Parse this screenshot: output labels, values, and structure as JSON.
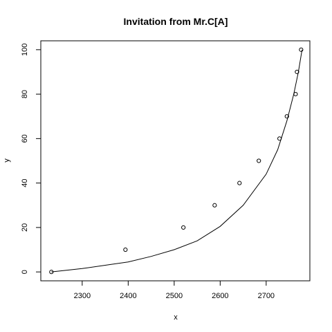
{
  "chart_data": {
    "type": "scatter",
    "title": "Invitation from Mr.C[A]",
    "xlabel": "x",
    "ylabel": "y",
    "xlim": [
      2210,
      2795
    ],
    "ylim": [
      -4,
      104
    ],
    "xticks": [
      2300,
      2400,
      2500,
      2600,
      2700
    ],
    "yticks": [
      0,
      20,
      40,
      60,
      80,
      100
    ],
    "grid": false,
    "legend": "none",
    "points": [
      {
        "x": 2233,
        "y": 0
      },
      {
        "x": 2394,
        "y": 10
      },
      {
        "x": 2520,
        "y": 20
      },
      {
        "x": 2588,
        "y": 30
      },
      {
        "x": 2642,
        "y": 40
      },
      {
        "x": 2684,
        "y": 50
      },
      {
        "x": 2729,
        "y": 60
      },
      {
        "x": 2745,
        "y": 70
      },
      {
        "x": 2764,
        "y": 80
      },
      {
        "x": 2767,
        "y": 90
      },
      {
        "x": 2776,
        "y": 100
      }
    ],
    "fitted_curve": [
      {
        "x": 2233,
        "y": 0
      },
      {
        "x": 2300,
        "y": 1.5
      },
      {
        "x": 2350,
        "y": 3
      },
      {
        "x": 2400,
        "y": 4.5
      },
      {
        "x": 2450,
        "y": 7
      },
      {
        "x": 2500,
        "y": 10
      },
      {
        "x": 2550,
        "y": 14
      },
      {
        "x": 2600,
        "y": 20.5
      },
      {
        "x": 2650,
        "y": 30
      },
      {
        "x": 2700,
        "y": 44
      },
      {
        "x": 2725,
        "y": 55
      },
      {
        "x": 2745,
        "y": 68
      },
      {
        "x": 2760,
        "y": 80
      },
      {
        "x": 2770,
        "y": 90
      },
      {
        "x": 2778,
        "y": 100
      }
    ]
  }
}
